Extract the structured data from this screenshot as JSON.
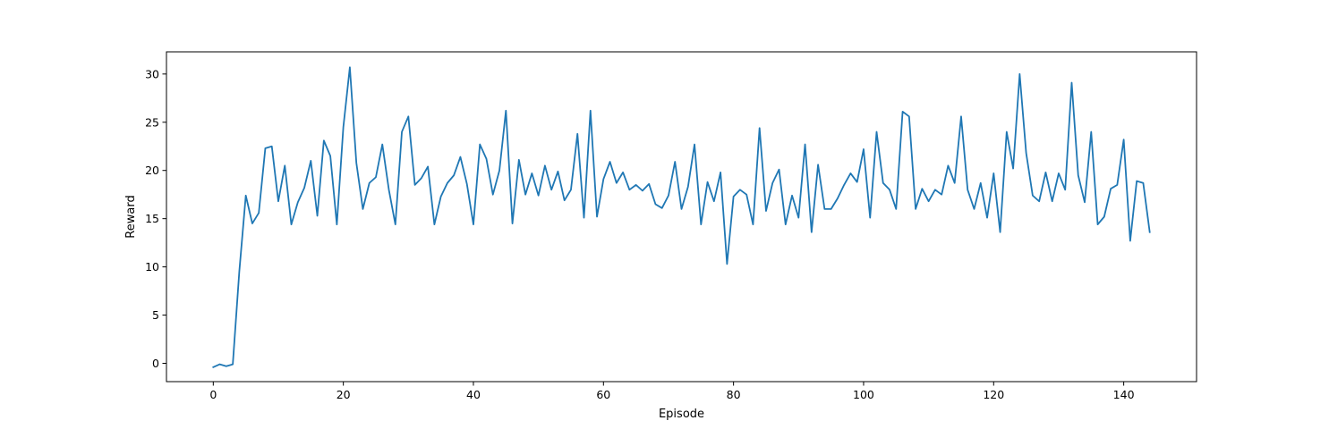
{
  "chart_data": {
    "type": "line",
    "title": "",
    "xlabel": "Episode",
    "ylabel": "Reward",
    "xlim": [
      -7.2,
      151.2
    ],
    "ylim": [
      -1.9,
      32.3
    ],
    "xticks": [
      0,
      20,
      40,
      60,
      80,
      100,
      120,
      140
    ],
    "yticks": [
      0,
      5,
      10,
      15,
      20,
      25,
      30
    ],
    "grid": false,
    "legend": "none",
    "series": [
      {
        "color": "#1f77b4",
        "x": [
          0,
          1,
          2,
          3,
          4,
          5,
          6,
          7,
          8,
          9,
          10,
          11,
          12,
          13,
          14,
          15,
          16,
          17,
          18,
          19,
          20,
          21,
          22,
          23,
          24,
          25,
          26,
          27,
          28,
          29,
          30,
          31,
          32,
          33,
          34,
          35,
          36,
          37,
          38,
          39,
          40,
          41,
          42,
          43,
          44,
          45,
          46,
          47,
          48,
          49,
          50,
          51,
          52,
          53,
          54,
          55,
          56,
          57,
          58,
          59,
          60,
          61,
          62,
          63,
          64,
          65,
          66,
          67,
          68,
          69,
          70,
          71,
          72,
          73,
          74,
          75,
          76,
          77,
          78,
          79,
          80,
          81,
          82,
          83,
          84,
          85,
          86,
          87,
          88,
          89,
          90,
          91,
          92,
          93,
          94,
          95,
          96,
          97,
          98,
          99,
          100,
          101,
          102,
          103,
          104,
          105,
          106,
          107,
          108,
          109,
          110,
          111,
          112,
          113,
          114,
          115,
          116,
          117,
          118,
          119,
          120,
          121,
          122,
          123,
          124,
          125,
          126,
          127,
          128,
          129,
          130,
          131,
          132,
          133,
          134,
          135,
          136,
          137,
          138,
          139,
          140,
          141,
          142,
          143,
          144
        ],
        "y": [
          -0.4,
          -0.1,
          -0.3,
          -0.1,
          9.5,
          17.4,
          14.5,
          15.6,
          22.3,
          22.5,
          16.8,
          20.5,
          14.4,
          16.7,
          18.2,
          21.0,
          15.3,
          23.1,
          21.5,
          14.4,
          24.5,
          30.7,
          20.8,
          16.0,
          18.7,
          19.3,
          22.7,
          18.0,
          14.4,
          24.0,
          25.6,
          18.5,
          19.2,
          20.4,
          14.4,
          17.3,
          18.7,
          19.5,
          21.4,
          18.6,
          14.4,
          22.7,
          21.2,
          17.5,
          20.0,
          26.2,
          14.5,
          21.1,
          17.5,
          19.7,
          17.4,
          20.5,
          18.0,
          19.9,
          16.9,
          18.0,
          23.8,
          15.1,
          26.2,
          15.2,
          19.1,
          20.9,
          18.7,
          19.8,
          18.0,
          18.5,
          17.9,
          18.6,
          16.5,
          16.1,
          17.4,
          20.9,
          16.0,
          18.3,
          22.7,
          14.4,
          18.8,
          16.8,
          19.8,
          10.3,
          17.3,
          18.0,
          17.5,
          14.4,
          24.4,
          15.8,
          18.7,
          20.1,
          14.4,
          17.4,
          15.1,
          22.7,
          13.6,
          20.6,
          16.0,
          16.0,
          17.1,
          18.5,
          19.7,
          18.8,
          22.2,
          15.1,
          24.0,
          18.7,
          18.0,
          16.0,
          26.1,
          25.6,
          16.0,
          18.1,
          16.8,
          18.0,
          17.5,
          20.5,
          18.7,
          25.6,
          18.0,
          16.0,
          18.7,
          15.1,
          19.7,
          13.6,
          24.0,
          20.2,
          30.0,
          21.8,
          17.4,
          16.8,
          19.8,
          16.8,
          19.7,
          18.0,
          29.1,
          19.5,
          16.7,
          24.0,
          14.4,
          15.2,
          18.1,
          18.5,
          23.2,
          12.7,
          18.9,
          18.7,
          13.6
        ]
      }
    ]
  }
}
